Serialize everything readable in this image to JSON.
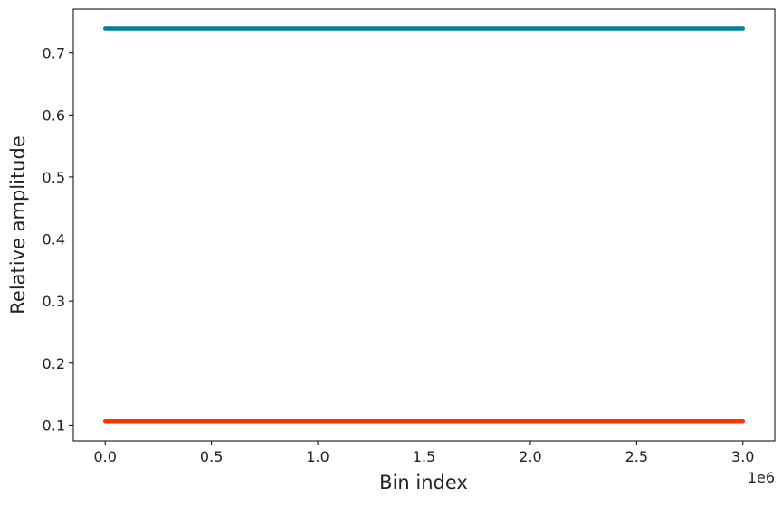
{
  "chart_data": {
    "type": "line",
    "title": "",
    "xlabel": "Bin index",
    "ylabel": "Relative amplitude",
    "x_offset_label": "1e6",
    "xlim": [
      -0.15,
      3.15
    ],
    "ylim": [
      0.0743,
      0.771
    ],
    "x_scale": 1000000,
    "xticks": [
      0.0,
      0.5,
      1.0,
      1.5,
      2.0,
      2.5,
      3.0
    ],
    "xtick_labels": [
      "0.0",
      "0.5",
      "1.0",
      "1.5",
      "2.0",
      "2.5",
      "3.0"
    ],
    "yticks": [
      0.1,
      0.2,
      0.3,
      0.4,
      0.5,
      0.6,
      0.7
    ],
    "ytick_labels": [
      "0.1",
      "0.2",
      "0.3",
      "0.4",
      "0.5",
      "0.6",
      "0.7"
    ],
    "grid": false,
    "series": [
      {
        "color": "#00829a",
        "x": [
          0.0,
          3.0
        ],
        "y": [
          0.7396,
          0.7396
        ]
      },
      {
        "color": "#ff3300",
        "x": [
          0.0,
          3.0
        ],
        "y": [
          0.106,
          0.106
        ]
      }
    ]
  }
}
